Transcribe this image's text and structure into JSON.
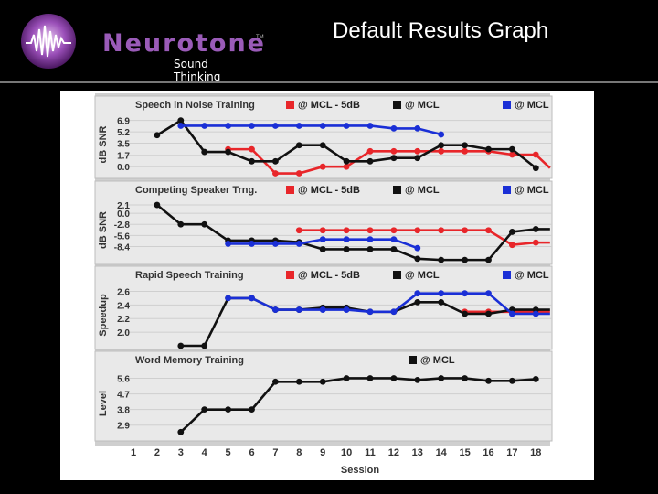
{
  "header": {
    "brand": "Neurotone",
    "tagline": "Sound Thinking",
    "trademark": "TM",
    "title": "Default Results Graph"
  },
  "colors": {
    "red": "#e8262a",
    "black": "#111111",
    "blue": "#1a2fd6",
    "panel_bg": "#e9e9e9",
    "brand": "#9a5bb8"
  },
  "chart_data": [
    {
      "type": "line",
      "title": "Speech in Noise Training",
      "ylabel": "dB SNR",
      "yticks": [
        "6.9",
        "5.2",
        "3.5",
        "1.7",
        "0.0"
      ],
      "ylim": [
        -1.2,
        7.8
      ],
      "invert": false,
      "legend": [
        "@ MCL - 5dB",
        "@ MCL",
        "@ MCL"
      ],
      "series": [
        {
          "name": "@ MCL - 5dB",
          "color": "red",
          "points": [
            [
              5,
              2.6
            ],
            [
              6,
              2.6
            ],
            [
              7,
              -1
            ],
            [
              8,
              -1
            ],
            [
              9,
              0
            ],
            [
              10,
              0
            ],
            [
              11,
              2.3
            ],
            [
              12,
              2.3
            ],
            [
              13,
              2.3
            ],
            [
              14,
              2.3
            ],
            [
              15,
              2.3
            ],
            [
              16,
              2.3
            ],
            [
              17,
              1.8
            ],
            [
              18,
              1.8
            ],
            [
              18.6,
              -0.2
            ]
          ]
        },
        {
          "name": "@ MCL",
          "color": "black",
          "points": [
            [
              2,
              4.7
            ],
            [
              3,
              6.9
            ],
            [
              4,
              2.2
            ],
            [
              5,
              2.2
            ],
            [
              6,
              0.8
            ],
            [
              7,
              0.8
            ],
            [
              8,
              3.2
            ],
            [
              9,
              3.2
            ],
            [
              10,
              0.8
            ],
            [
              11,
              0.8
            ],
            [
              12,
              1.3
            ],
            [
              13,
              1.3
            ],
            [
              14,
              3.2
            ],
            [
              15,
              3.2
            ],
            [
              16,
              2.6
            ],
            [
              17,
              2.6
            ],
            [
              18,
              -0.2
            ]
          ]
        },
        {
          "name": "@ MCL",
          "color": "blue",
          "points": [
            [
              3,
              6.1
            ],
            [
              4,
              6.1
            ],
            [
              5,
              6.1
            ],
            [
              6,
              6.1
            ],
            [
              7,
              6.1
            ],
            [
              8,
              6.1
            ],
            [
              9,
              6.1
            ],
            [
              10,
              6.1
            ],
            [
              11,
              6.1
            ],
            [
              12,
              5.7
            ],
            [
              13,
              5.7
            ],
            [
              14,
              4.8
            ]
          ]
        }
      ]
    },
    {
      "type": "line",
      "title": "Competing Speaker Trng.",
      "ylabel": "dB SNR",
      "yticks": [
        "2.1",
        "0.0",
        "-2.8",
        "-5.6",
        "-8.4"
      ],
      "ylim": [
        -12,
        3.5
      ],
      "invert": false,
      "legend": [
        "@ MCL - 5dB",
        "@ MCL",
        "@ MCL"
      ],
      "series": [
        {
          "name": "@ MCL - 5dB",
          "color": "red",
          "points": [
            [
              8,
              -4.3
            ],
            [
              9,
              -4.3
            ],
            [
              10,
              -4.3
            ],
            [
              11,
              -4.3
            ],
            [
              12,
              -4.3
            ],
            [
              13,
              -4.3
            ],
            [
              14,
              -4.3
            ],
            [
              15,
              -4.3
            ],
            [
              16,
              -4.3
            ],
            [
              17,
              -8.0
            ],
            [
              18,
              -7.4
            ],
            [
              18.6,
              -7.4
            ]
          ]
        },
        {
          "name": "@ MCL",
          "color": "black",
          "points": [
            [
              2,
              2.1
            ],
            [
              3,
              -2.8
            ],
            [
              4,
              -2.8
            ],
            [
              5,
              -6.9
            ],
            [
              6,
              -6.9
            ],
            [
              7,
              -6.9
            ],
            [
              8,
              -7.3
            ],
            [
              9,
              -9.1
            ],
            [
              10,
              -9.1
            ],
            [
              11,
              -9.1
            ],
            [
              12,
              -9.1
            ],
            [
              13,
              -11.5
            ],
            [
              14,
              -11.8
            ],
            [
              15,
              -11.8
            ],
            [
              16,
              -11.8
            ],
            [
              17,
              -4.7
            ],
            [
              18,
              -4.0
            ],
            [
              18.6,
              -4.0
            ]
          ]
        },
        {
          "name": "@ MCL",
          "color": "blue",
          "points": [
            [
              5,
              -7.7
            ],
            [
              6,
              -7.7
            ],
            [
              7,
              -7.7
            ],
            [
              8,
              -7.7
            ],
            [
              9,
              -6.6
            ],
            [
              10,
              -6.6
            ],
            [
              11,
              -6.6
            ],
            [
              12,
              -6.6
            ],
            [
              13,
              -8.8
            ]
          ]
        }
      ]
    },
    {
      "type": "line",
      "title": "Rapid Speech Training",
      "ylabel": "Speedup",
      "yticks": [
        "2.6",
        "2.4",
        "2.2",
        "2.0"
      ],
      "ylim": [
        1.8,
        2.7
      ],
      "invert": false,
      "legend": [
        "@ MCL - 5dB",
        "@ MCL",
        "@ MCL"
      ],
      "series": [
        {
          "name": "@ MCL - 5dB",
          "color": "red",
          "points": [
            [
              15,
              2.3
            ],
            [
              16,
              2.3
            ],
            [
              17,
              2.3
            ],
            [
              18,
              2.3
            ],
            [
              18.6,
              2.3
            ]
          ]
        },
        {
          "name": "@ MCL",
          "color": "black",
          "points": [
            [
              3,
              1.8
            ],
            [
              4,
              1.8
            ],
            [
              5,
              2.5
            ],
            [
              6,
              2.5
            ],
            [
              7,
              2.33
            ],
            [
              8,
              2.33
            ],
            [
              9,
              2.36
            ],
            [
              10,
              2.36
            ],
            [
              11,
              2.3
            ],
            [
              12,
              2.3
            ],
            [
              13,
              2.44
            ],
            [
              14,
              2.44
            ],
            [
              15,
              2.27
            ],
            [
              16,
              2.27
            ],
            [
              17,
              2.33
            ],
            [
              18,
              2.33
            ],
            [
              18.6,
              2.33
            ]
          ]
        },
        {
          "name": "@ MCL",
          "color": "blue",
          "points": [
            [
              5,
              2.5
            ],
            [
              6,
              2.5
            ],
            [
              7,
              2.33
            ],
            [
              8,
              2.33
            ],
            [
              9,
              2.33
            ],
            [
              10,
              2.33
            ],
            [
              11,
              2.3
            ],
            [
              12,
              2.3
            ],
            [
              13,
              2.57
            ],
            [
              14,
              2.57
            ],
            [
              15,
              2.57
            ],
            [
              16,
              2.57
            ],
            [
              17,
              2.27
            ],
            [
              18,
              2.27
            ],
            [
              18.6,
              2.27
            ]
          ]
        }
      ]
    },
    {
      "type": "line",
      "title": "Word Memory Training",
      "ylabel": "Level",
      "yticks": [
        "5.6",
        "4.7",
        "3.8",
        "2.9"
      ],
      "ylim": [
        2.2,
        6.1
      ],
      "invert": false,
      "legend": [
        "@ MCL"
      ],
      "series": [
        {
          "name": "@ MCL",
          "color": "black",
          "points": [
            [
              3,
              2.5
            ],
            [
              4,
              3.8
            ],
            [
              5,
              3.8
            ],
            [
              6,
              3.8
            ],
            [
              7,
              5.4
            ],
            [
              8,
              5.4
            ],
            [
              9,
              5.4
            ],
            [
              10,
              5.6
            ],
            [
              11,
              5.6
            ],
            [
              12,
              5.6
            ],
            [
              13,
              5.5
            ],
            [
              14,
              5.6
            ],
            [
              15,
              5.6
            ],
            [
              16,
              5.45
            ],
            [
              17,
              5.45
            ],
            [
              18,
              5.55
            ]
          ]
        }
      ]
    }
  ],
  "x_axis": {
    "ticks": [
      "1",
      "2",
      "3",
      "4",
      "5",
      "6",
      "7",
      "8",
      "9",
      "10",
      "11",
      "12",
      "13",
      "14",
      "15",
      "16",
      "17",
      "18"
    ],
    "label": "Session"
  }
}
